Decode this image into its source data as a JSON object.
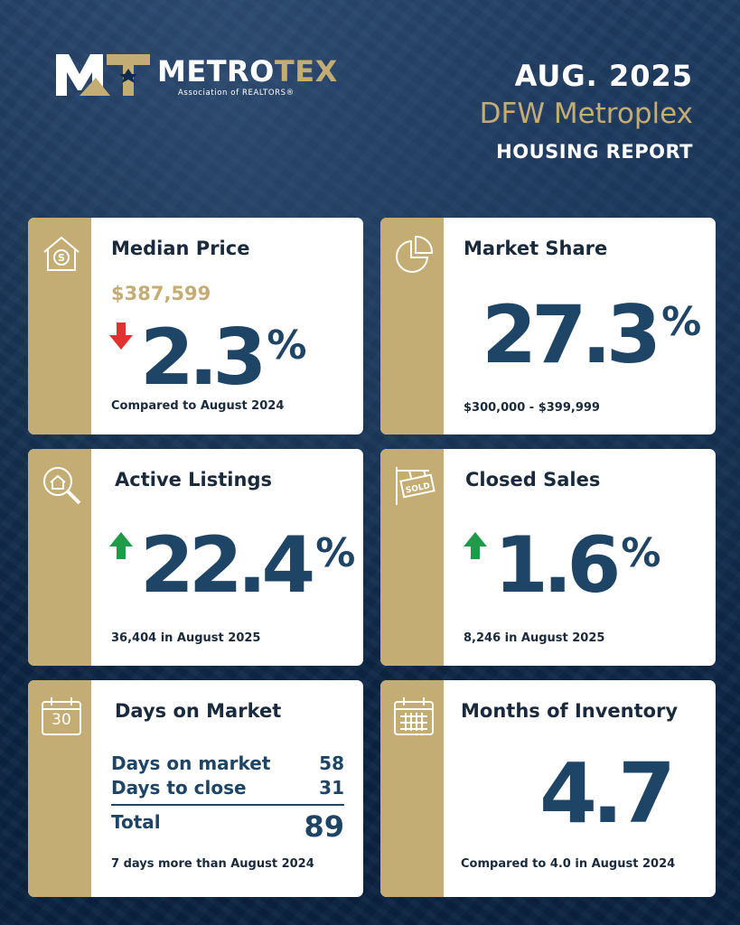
{
  "header": {
    "logo_main": "METRO",
    "logo_accent": "TEX",
    "logo_sub": "Association of REALTORS®",
    "date": "AUG. 2025",
    "region": "DFW Metroplex",
    "report": "HOUSING REPORT"
  },
  "colors": {
    "navy": "#1e4566",
    "gold": "#c3ad74",
    "up": "#1e9a48",
    "down": "#e0322f"
  },
  "cards": {
    "median_price": {
      "icon": "house-dollar-icon",
      "title": "Median Price",
      "price": "$387,599",
      "direction": "down",
      "change": "2.3",
      "unit": "%",
      "foot": "Compared to August 2024"
    },
    "market_share": {
      "icon": "pie-chart-icon",
      "title": "Market Share",
      "value": "27.3",
      "unit": "%",
      "foot": "$300,000 - $399,999"
    },
    "active_listings": {
      "icon": "house-search-icon",
      "title": "Active Listings",
      "direction": "up",
      "change": "22.4",
      "unit": "%",
      "foot": "36,404 in August 2025"
    },
    "closed_sales": {
      "icon": "sold-sign-icon",
      "title": "Closed Sales",
      "direction": "up",
      "change": "1.6",
      "unit": "%",
      "foot": "8,246  in August 2025"
    },
    "days_on_market": {
      "icon": "calendar-30-icon",
      "calendar_label": "30",
      "title": "Days on Market",
      "rows": [
        {
          "label": "Days on market",
          "value": "58"
        },
        {
          "label": "Days to close",
          "value": "31"
        }
      ],
      "total_label": "Total",
      "total_value": "89",
      "foot": "7 days more than August 2024"
    },
    "months_inventory": {
      "icon": "calendar-grid-icon",
      "title": "Months of Inventory",
      "value": "4.7",
      "foot": "Compared to 4.0 in August 2024"
    }
  }
}
